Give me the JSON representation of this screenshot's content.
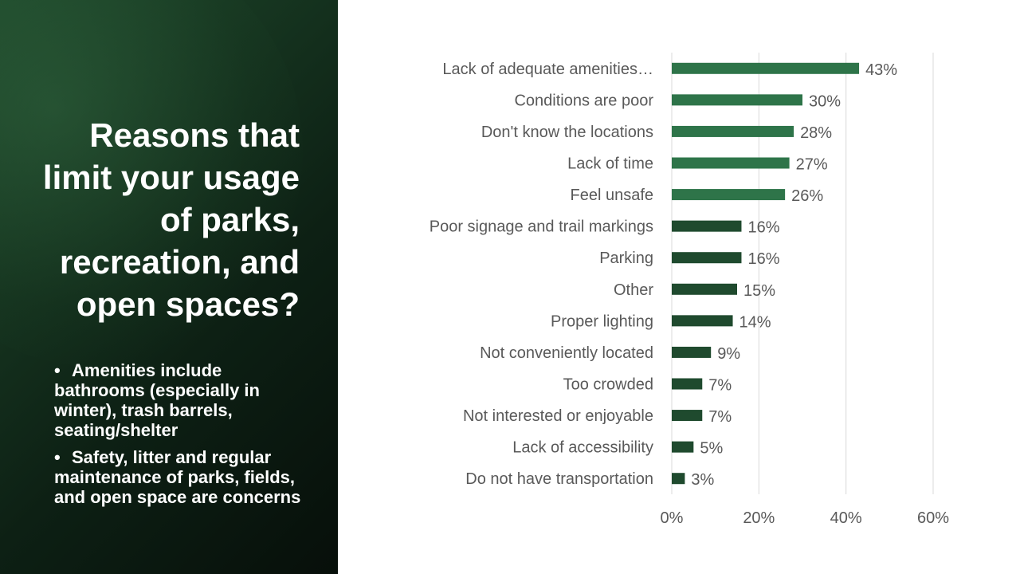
{
  "slide": {
    "title": "Reasons that limit your usage of parks, recreation, and open spaces?",
    "bullets": [
      "Amenities include bathrooms (especially in winter), trash barrels, seating/shelter",
      "Safety, litter and regular maintenance of parks, fields, and open space are concerns"
    ]
  },
  "colors": {
    "bar_light": "#2e7449",
    "bar_dark": "#1f4a2e",
    "label_text": "#595959",
    "gridline": "#d9d9d9",
    "panel_bg": "#0d2014"
  },
  "chart_data": {
    "type": "bar",
    "orientation": "horizontal",
    "categories": [
      "Lack of adequate amenities…",
      "Conditions are poor",
      "Don't know the locations",
      "Lack of time",
      "Feel unsafe",
      "Poor signage and trail markings",
      "Parking",
      "Other",
      "Proper lighting",
      "Not conveniently located",
      "Too crowded",
      "Not interested or enjoyable",
      "Lack of accessibility",
      "Do not have transportation"
    ],
    "values": [
      43,
      30,
      28,
      27,
      26,
      16,
      16,
      15,
      14,
      9,
      7,
      7,
      5,
      3
    ],
    "data_labels": [
      "43%",
      "30%",
      "28%",
      "27%",
      "26%",
      "16%",
      "16%",
      "15%",
      "14%",
      "9%",
      "7%",
      "7%",
      "5%",
      "3%"
    ],
    "highlight_top_n": 5,
    "xlim": [
      0,
      60
    ],
    "xticks": [
      0,
      20,
      40,
      60
    ],
    "xtick_labels": [
      "0%",
      "20%",
      "40%",
      "60%"
    ],
    "grid": true,
    "legend": "none"
  }
}
